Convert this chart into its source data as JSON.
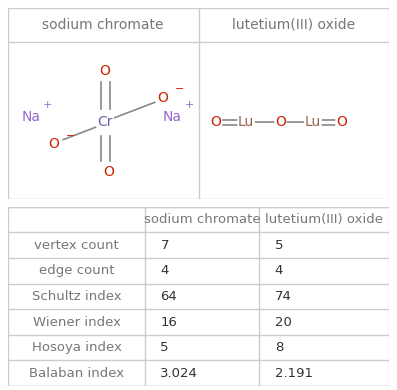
{
  "col1_header": "sodium chromate",
  "col2_header": "lutetium(III) oxide",
  "rows": [
    {
      "label": "vertex count",
      "val1": "7",
      "val2": "5"
    },
    {
      "label": "edge count",
      "val1": "4",
      "val2": "4"
    },
    {
      "label": "Schultz index",
      "val1": "64",
      "val2": "74"
    },
    {
      "label": "Wiener index",
      "val1": "16",
      "val2": "20"
    },
    {
      "label": "Hosoya index",
      "val1": "5",
      "val2": "8"
    },
    {
      "label": "Balaban index",
      "val1": "3.024",
      "val2": "2.191"
    }
  ],
  "bg_color": "#ffffff",
  "header_text_color": "#777777",
  "table_text_color": "#333333",
  "label_text_color": "#777777",
  "border_color": "#cccccc",
  "na_color": "#9966cc",
  "cr_color": "#6666aa",
  "o_color": "#cc2200",
  "lu_color": "#996655",
  "fig_width": 3.97,
  "fig_height": 3.9
}
